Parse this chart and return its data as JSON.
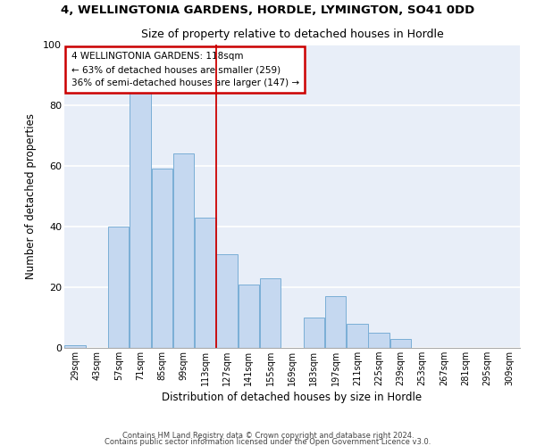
{
  "title": "4, WELLINGTONIA GARDENS, HORDLE, LYMINGTON, SO41 0DD",
  "subtitle": "Size of property relative to detached houses in Hordle",
  "xlabel": "Distribution of detached houses by size in Hordle",
  "ylabel": "Number of detached properties",
  "bar_color": "#c5d8f0",
  "bar_edge_color": "#7aaed6",
  "background_color": "#e8eef8",
  "grid_color": "#ffffff",
  "categories": [
    "29sqm",
    "43sqm",
    "57sqm",
    "71sqm",
    "85sqm",
    "99sqm",
    "113sqm",
    "127sqm",
    "141sqm",
    "155sqm",
    "169sqm",
    "183sqm",
    "197sqm",
    "211sqm",
    "225sqm",
    "239sqm",
    "253sqm",
    "267sqm",
    "281sqm",
    "295sqm",
    "309sqm"
  ],
  "values": [
    1,
    0,
    40,
    84,
    59,
    64,
    43,
    31,
    21,
    23,
    0,
    10,
    17,
    8,
    5,
    3,
    0,
    0,
    0,
    0,
    0
  ],
  "ylim": [
    0,
    100
  ],
  "vline_color": "#cc0000",
  "annotation_text": "4 WELLINGTONIA GARDENS: 118sqm\n← 63% of detached houses are smaller (259)\n36% of semi-detached houses are larger (147) →",
  "annotation_box_color": "#ffffff",
  "annotation_box_edge": "#cc0000",
  "footer1": "Contains HM Land Registry data © Crown copyright and database right 2024.",
  "footer2": "Contains public sector information licensed under the Open Government Licence v3.0."
}
